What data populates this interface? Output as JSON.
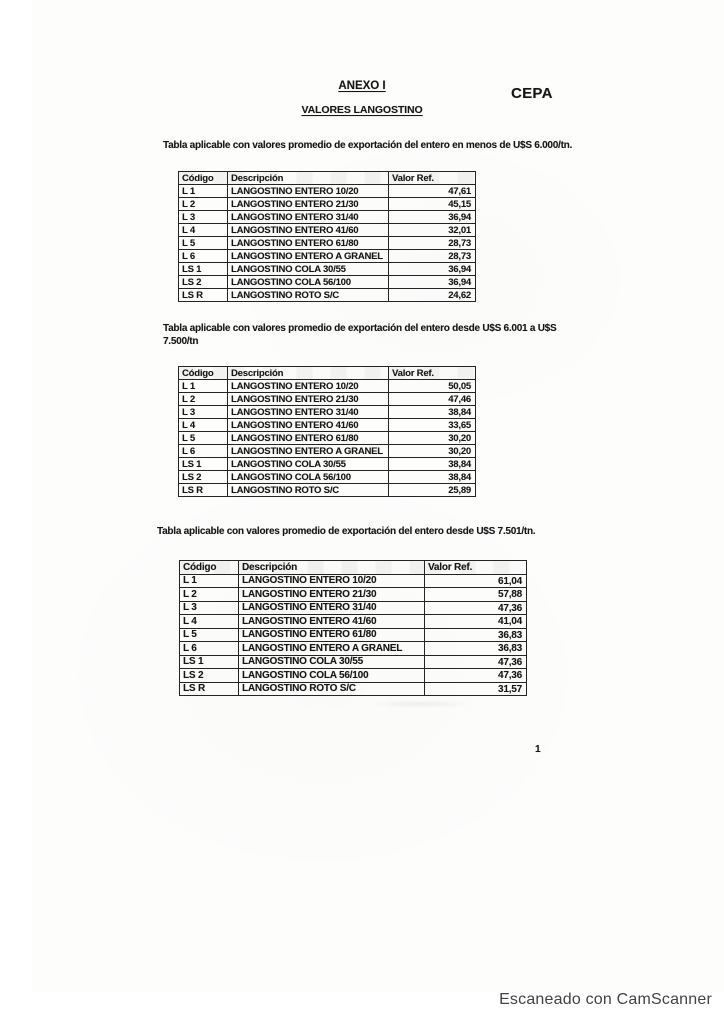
{
  "page": {
    "anexo_title": "ANEXO I",
    "stamp": "CEPA",
    "subtitle": "VALORES LANGOSTINO",
    "page_number": "1",
    "scanner_credit": "Escaneado con CamScanner"
  },
  "colors": {
    "ink": "#1a1a1a",
    "paper": "#fdfdfc",
    "scanner_credit_gray": "#434343"
  },
  "tables": [
    {
      "caption_lines": [
        "Tabla aplicable con valores promedio de exportación del entero en menos de U$S 6.000/tn."
      ],
      "columns": [
        "Código",
        "Descripción",
        "Valor Ref."
      ],
      "rows": [
        [
          "L 1",
          "LANGOSTINO ENTERO 10/20",
          "47,61"
        ],
        [
          "L 2",
          "LANGOSTINO ENTERO 21/30",
          "45,15"
        ],
        [
          "L 3",
          "LANGOSTINO ENTERO 31/40",
          "36,94"
        ],
        [
          "L 4",
          "LANGOSTINO ENTERO 41/60",
          "32,01"
        ],
        [
          "L 5",
          "LANGOSTINO ENTERO 61/80",
          "28,73"
        ],
        [
          "L 6",
          "LANGOSTINO ENTERO A GRANEL",
          "28,73"
        ],
        [
          "LS 1",
          "LANGOSTINO COLA 30/55",
          "36,94"
        ],
        [
          "LS 2",
          "LANGOSTINO COLA 56/100",
          "36,94"
        ],
        [
          "LS R",
          "LANGOSTINO ROTO S/C",
          "24,62"
        ]
      ]
    },
    {
      "caption_lines": [
        "Tabla aplicable con valores promedio de exportación del entero desde U$S 6.001 a U$S",
        "7.500/tn"
      ],
      "columns": [
        "Código",
        "Descripción",
        "Valor Ref."
      ],
      "rows": [
        [
          "L 1",
          "LANGOSTINO ENTERO 10/20",
          "50,05"
        ],
        [
          "L 2",
          "LANGOSTINO ENTERO 21/30",
          "47,46"
        ],
        [
          "L 3",
          "LANGOSTINO ENTERO 31/40",
          "38,84"
        ],
        [
          "L 4",
          "LANGOSTINO ENTERO 41/60",
          "33,65"
        ],
        [
          "L 5",
          "LANGOSTINO ENTERO 61/80",
          "30,20"
        ],
        [
          "L 6",
          "LANGOSTINO ENTERO A GRANEL",
          "30,20"
        ],
        [
          "LS 1",
          "LANGOSTINO COLA 30/55",
          "38,84"
        ],
        [
          "LS 2",
          "LANGOSTINO COLA 56/100",
          "38,84"
        ],
        [
          "LS R",
          "LANGOSTINO ROTO S/C",
          "25,89"
        ]
      ]
    },
    {
      "caption_lines": [
        "Tabla aplicable con valores promedio de exportación del entero desde U$S 7.501/tn."
      ],
      "columns": [
        "Código",
        "Descripción",
        "Valor Ref."
      ],
      "rows": [
        [
          "L 1",
          "LANGOSTINO ENTERO 10/20",
          "61,04"
        ],
        [
          "L 2",
          "LANGOSTINO ENTERO 21/30",
          "57,88"
        ],
        [
          "L 3",
          "LANGOSTINO ENTERO 31/40",
          "47,36"
        ],
        [
          "L 4",
          "LANGOSTINO ENTERO 41/60",
          "41,04"
        ],
        [
          "L 5",
          "LANGOSTINO ENTERO 61/80",
          "36,83"
        ],
        [
          "L 6",
          "LANGOSTINO ENTERO A GRANEL",
          "36,83"
        ],
        [
          "LS 1",
          "LANGOSTINO COLA 30/55",
          "47,36"
        ],
        [
          "LS 2",
          "LANGOSTINO COLA 56/100",
          "47,36"
        ],
        [
          "LS R",
          "LANGOSTINO ROTO S/C",
          "31,57"
        ]
      ]
    }
  ]
}
